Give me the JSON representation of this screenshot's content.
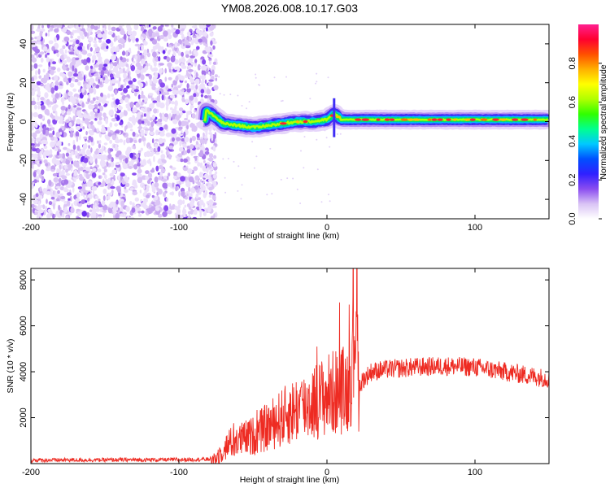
{
  "figure_title": "YM08.2026.008.10.17.G03",
  "chart_data": [
    {
      "type": "heatmap",
      "name": "spectrogram",
      "xlabel": "Height of straight line (km)",
      "ylabel": "Frequency (Hz)",
      "xlim": [
        -200,
        150
      ],
      "ylim": [
        -50,
        50
      ],
      "xticks": [
        -200,
        -100,
        0,
        100
      ],
      "yticks": [
        -40,
        -20,
        0,
        20,
        40
      ],
      "noise_region_x": [
        -200,
        -78
      ],
      "signal_track": [
        {
          "x": -82,
          "y": 6
        },
        {
          "x": -75,
          "y": 2
        },
        {
          "x": -70,
          "y": -1
        },
        {
          "x": -60,
          "y": -2
        },
        {
          "x": -50,
          "y": -3
        },
        {
          "x": -40,
          "y": -2
        },
        {
          "x": -30,
          "y": -1
        },
        {
          "x": -20,
          "y": 0
        },
        {
          "x": -10,
          "y": 0
        },
        {
          "x": 0,
          "y": 1
        },
        {
          "x": 5,
          "y": 4
        },
        {
          "x": 10,
          "y": 1
        },
        {
          "x": 20,
          "y": 1
        },
        {
          "x": 50,
          "y": 1
        },
        {
          "x": 100,
          "y": 1
        },
        {
          "x": 150,
          "y": 1
        }
      ],
      "colorbar": {
        "label": "Normalized spectral amplitude",
        "range": [
          0,
          1
        ],
        "ticks": [
          "0.0",
          "0.2",
          "0.4",
          "0.6",
          "0.8"
        ],
        "colors": [
          "#ffffff",
          "#d9c3f5",
          "#8a4df0",
          "#3020ff",
          "#0050ff",
          "#00c8ff",
          "#00ff90",
          "#30ff00",
          "#b0ff00",
          "#ffff00",
          "#ffb000",
          "#ff5000",
          "#ff0030",
          "#ff2090"
        ]
      }
    },
    {
      "type": "line",
      "name": "snr",
      "xlabel": "Height of straight line (km)",
      "ylabel": "SNR (10 * v/v)",
      "xlim": [
        -200,
        150
      ],
      "ylim": [
        0,
        8500
      ],
      "xticks": [
        -200,
        -100,
        0,
        100
      ],
      "yticks": [
        2000,
        4000,
        6000,
        8000
      ],
      "color": "#ee2b22",
      "series": [
        {
          "name": "SNR",
          "x": [
            -200,
            -150,
            -100,
            -80,
            -75,
            -70,
            -65,
            -60,
            -55,
            -50,
            -45,
            -40,
            -35,
            -30,
            -25,
            -20,
            -15,
            -10,
            -5,
            0,
            5,
            10,
            15,
            18,
            20,
            21,
            22,
            25,
            30,
            40,
            60,
            80,
            100,
            120,
            150
          ],
          "y": [
            150,
            160,
            170,
            190,
            250,
            600,
            900,
            1000,
            1100,
            1200,
            1400,
            1600,
            1800,
            2000,
            2200,
            2400,
            2500,
            2700,
            2800,
            3000,
            3100,
            3200,
            3300,
            5000,
            8500,
            3500,
            3400,
            3700,
            4000,
            4100,
            4200,
            4250,
            4200,
            4000,
            3700
          ]
        }
      ]
    }
  ]
}
